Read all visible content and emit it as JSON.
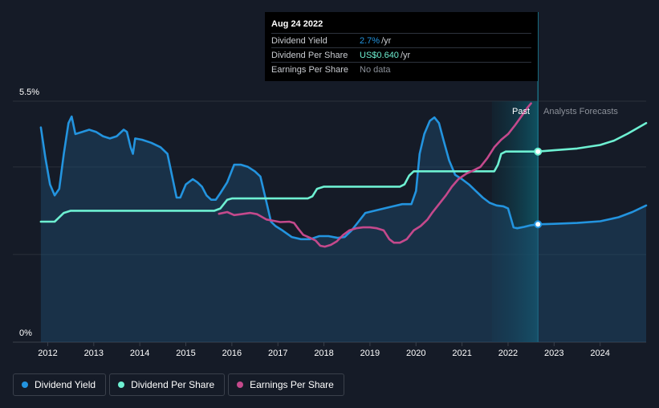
{
  "tooltip": {
    "date": "Aug 24 2022",
    "rows": [
      {
        "key": "Dividend Yield",
        "value": "2.7%",
        "unit": "/yr",
        "color": "#2394df"
      },
      {
        "key": "Dividend Per Share",
        "value": "US$0.640",
        "unit": "/yr",
        "color": "#6ef0d2"
      },
      {
        "key": "Earnings Per Share",
        "value": "No data",
        "unit": "",
        "color": "#8b9099"
      }
    ]
  },
  "chart_data": {
    "type": "line",
    "y_axis_labels": {
      "top": "5.5%",
      "bottom": "0%"
    },
    "ylim": [
      0,
      5.5
    ],
    "xlim": [
      2011.8,
      2025.0
    ],
    "x_ticks": [
      "2012",
      "2013",
      "2014",
      "2015",
      "2016",
      "2017",
      "2018",
      "2019",
      "2020",
      "2021",
      "2022",
      "2023",
      "2024"
    ],
    "regions": {
      "past": "Past",
      "forecast": "Analysts Forecasts",
      "forecast_start": 2021.65,
      "now": 2022.65
    },
    "colors": {
      "yield": "#2394df",
      "dps": "#6ef0d2",
      "eps": "#c4498c"
    },
    "series": [
      {
        "name": "Dividend Yield",
        "key": "yield",
        "points": [
          [
            2011.85,
            4.9
          ],
          [
            2011.95,
            4.2
          ],
          [
            2012.05,
            3.6
          ],
          [
            2012.15,
            3.35
          ],
          [
            2012.25,
            3.5
          ],
          [
            2012.35,
            4.3
          ],
          [
            2012.45,
            5.0
          ],
          [
            2012.52,
            5.15
          ],
          [
            2012.6,
            4.75
          ],
          [
            2012.75,
            4.8
          ],
          [
            2012.9,
            4.85
          ],
          [
            2013.05,
            4.8
          ],
          [
            2013.2,
            4.7
          ],
          [
            2013.35,
            4.65
          ],
          [
            2013.5,
            4.7
          ],
          [
            2013.65,
            4.85
          ],
          [
            2013.72,
            4.8
          ],
          [
            2013.8,
            4.45
          ],
          [
            2013.85,
            4.3
          ],
          [
            2013.9,
            4.65
          ],
          [
            2014.05,
            4.62
          ],
          [
            2014.25,
            4.55
          ],
          [
            2014.45,
            4.45
          ],
          [
            2014.6,
            4.3
          ],
          [
            2014.7,
            3.8
          ],
          [
            2014.8,
            3.3
          ],
          [
            2014.88,
            3.3
          ],
          [
            2015.0,
            3.6
          ],
          [
            2015.15,
            3.72
          ],
          [
            2015.25,
            3.65
          ],
          [
            2015.35,
            3.55
          ],
          [
            2015.45,
            3.35
          ],
          [
            2015.55,
            3.25
          ],
          [
            2015.65,
            3.25
          ],
          [
            2015.75,
            3.4
          ],
          [
            2015.9,
            3.65
          ],
          [
            2016.05,
            4.05
          ],
          [
            2016.2,
            4.05
          ],
          [
            2016.35,
            4.0
          ],
          [
            2016.5,
            3.9
          ],
          [
            2016.62,
            3.78
          ],
          [
            2016.75,
            3.2
          ],
          [
            2016.85,
            2.75
          ],
          [
            2016.95,
            2.65
          ],
          [
            2017.1,
            2.55
          ],
          [
            2017.3,
            2.4
          ],
          [
            2017.5,
            2.35
          ],
          [
            2017.7,
            2.35
          ],
          [
            2017.9,
            2.42
          ],
          [
            2018.1,
            2.42
          ],
          [
            2018.3,
            2.38
          ],
          [
            2018.45,
            2.4
          ],
          [
            2018.6,
            2.55
          ],
          [
            2018.75,
            2.75
          ],
          [
            2018.9,
            2.95
          ],
          [
            2019.1,
            3.0
          ],
          [
            2019.3,
            3.05
          ],
          [
            2019.5,
            3.1
          ],
          [
            2019.7,
            3.15
          ],
          [
            2019.9,
            3.15
          ],
          [
            2020.0,
            3.45
          ],
          [
            2020.08,
            4.3
          ],
          [
            2020.18,
            4.75
          ],
          [
            2020.3,
            5.05
          ],
          [
            2020.4,
            5.13
          ],
          [
            2020.5,
            5.0
          ],
          [
            2020.6,
            4.6
          ],
          [
            2020.72,
            4.15
          ],
          [
            2020.85,
            3.82
          ],
          [
            2021.0,
            3.72
          ],
          [
            2021.15,
            3.6
          ],
          [
            2021.3,
            3.45
          ],
          [
            2021.45,
            3.3
          ],
          [
            2021.6,
            3.18
          ],
          [
            2021.75,
            3.12
          ],
          [
            2021.9,
            3.1
          ],
          [
            2022.0,
            3.05
          ],
          [
            2022.12,
            2.62
          ],
          [
            2022.2,
            2.6
          ],
          [
            2022.35,
            2.63
          ],
          [
            2022.5,
            2.67
          ],
          [
            2022.65,
            2.69
          ],
          [
            2023.0,
            2.7
          ],
          [
            2023.5,
            2.72
          ],
          [
            2024.0,
            2.76
          ],
          [
            2024.4,
            2.85
          ],
          [
            2024.7,
            2.97
          ],
          [
            2025.0,
            3.12
          ]
        ]
      },
      {
        "name": "Dividend Per Share",
        "key": "dps",
        "points": [
          [
            2011.85,
            2.75
          ],
          [
            2012.15,
            2.75
          ],
          [
            2012.22,
            2.82
          ],
          [
            2012.35,
            2.95
          ],
          [
            2012.5,
            3.0
          ],
          [
            2015.62,
            3.0
          ],
          [
            2015.75,
            3.05
          ],
          [
            2015.9,
            3.25
          ],
          [
            2016.0,
            3.28
          ],
          [
            2017.65,
            3.28
          ],
          [
            2017.75,
            3.33
          ],
          [
            2017.85,
            3.5
          ],
          [
            2018.0,
            3.55
          ],
          [
            2019.65,
            3.55
          ],
          [
            2019.75,
            3.6
          ],
          [
            2019.85,
            3.8
          ],
          [
            2019.95,
            3.9
          ],
          [
            2021.7,
            3.9
          ],
          [
            2021.78,
            4.05
          ],
          [
            2021.85,
            4.3
          ],
          [
            2021.95,
            4.35
          ],
          [
            2022.65,
            4.35
          ],
          [
            2023.0,
            4.38
          ],
          [
            2023.5,
            4.42
          ],
          [
            2024.0,
            4.5
          ],
          [
            2024.3,
            4.6
          ],
          [
            2024.6,
            4.76
          ],
          [
            2025.0,
            5.0
          ]
        ]
      },
      {
        "name": "Earnings Per Share",
        "key": "eps",
        "points": [
          [
            2015.72,
            2.93
          ],
          [
            2015.9,
            2.97
          ],
          [
            2016.05,
            2.9
          ],
          [
            2016.2,
            2.92
          ],
          [
            2016.4,
            2.95
          ],
          [
            2016.55,
            2.92
          ],
          [
            2016.75,
            2.8
          ],
          [
            2016.9,
            2.77
          ],
          [
            2017.05,
            2.74
          ],
          [
            2017.25,
            2.75
          ],
          [
            2017.35,
            2.72
          ],
          [
            2017.45,
            2.58
          ],
          [
            2017.55,
            2.45
          ],
          [
            2017.7,
            2.38
          ],
          [
            2017.82,
            2.32
          ],
          [
            2017.92,
            2.2
          ],
          [
            2018.02,
            2.18
          ],
          [
            2018.15,
            2.22
          ],
          [
            2018.28,
            2.3
          ],
          [
            2018.42,
            2.45
          ],
          [
            2018.55,
            2.55
          ],
          [
            2018.7,
            2.6
          ],
          [
            2018.85,
            2.62
          ],
          [
            2019.0,
            2.62
          ],
          [
            2019.15,
            2.6
          ],
          [
            2019.3,
            2.55
          ],
          [
            2019.42,
            2.35
          ],
          [
            2019.52,
            2.27
          ],
          [
            2019.65,
            2.27
          ],
          [
            2019.8,
            2.35
          ],
          [
            2019.95,
            2.55
          ],
          [
            2020.1,
            2.65
          ],
          [
            2020.25,
            2.8
          ],
          [
            2020.35,
            2.95
          ],
          [
            2020.5,
            3.15
          ],
          [
            2020.65,
            3.35
          ],
          [
            2020.78,
            3.55
          ],
          [
            2020.92,
            3.72
          ],
          [
            2021.1,
            3.85
          ],
          [
            2021.25,
            3.92
          ],
          [
            2021.4,
            4.0
          ],
          [
            2021.55,
            4.2
          ],
          [
            2021.7,
            4.45
          ],
          [
            2021.85,
            4.62
          ],
          [
            2022.0,
            4.75
          ],
          [
            2022.15,
            4.95
          ],
          [
            2022.3,
            5.17
          ],
          [
            2022.42,
            5.35
          ],
          [
            2022.5,
            5.45
          ]
        ]
      }
    ],
    "markers": [
      {
        "series": "dps",
        "x": 2022.65,
        "y": 4.35
      },
      {
        "series": "yield",
        "x": 2022.65,
        "y": 2.69
      }
    ]
  },
  "legend": [
    {
      "label": "Dividend Yield",
      "color": "#2394df"
    },
    {
      "label": "Dividend Per Share",
      "color": "#6ef0d2"
    },
    {
      "label": "Earnings Per Share",
      "color": "#c4498c"
    }
  ]
}
